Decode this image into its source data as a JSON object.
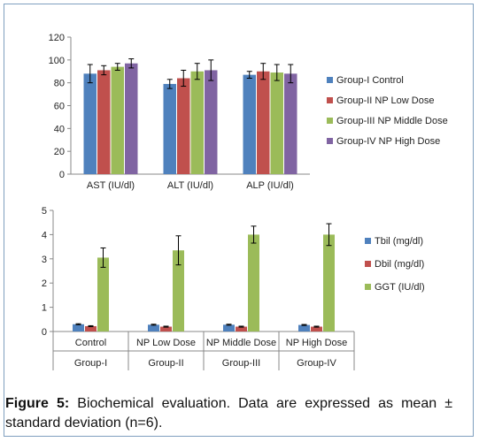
{
  "caption": {
    "label": "Figure 5:",
    "text": "Biochemical evaluation. Data are expressed as mean ± standard deviation (n=6)."
  },
  "chart_data": [
    {
      "type": "bar",
      "title": "",
      "xlabel": "",
      "ylabel": "",
      "ylim": [
        0,
        120
      ],
      "yticks": [
        "0",
        "20",
        "40",
        "60",
        "80",
        "100",
        "120"
      ],
      "grid": false,
      "legend": "right",
      "categories": [
        "AST (IU/dl)",
        "ALT (IU/dl)",
        "ALP (IU/dl)"
      ],
      "series": [
        {
          "name": "Group-I Control",
          "color": "#4f81bd",
          "values": [
            88,
            79,
            87
          ],
          "errors": [
            8,
            4,
            3
          ]
        },
        {
          "name": "Group-II NP Low Dose",
          "color": "#c0504d",
          "values": [
            91,
            84,
            90
          ],
          "errors": [
            4,
            7,
            7
          ]
        },
        {
          "name": "Group-III NP Middle Dose",
          "color": "#9bbb59",
          "values": [
            94,
            90,
            89
          ],
          "errors": [
            3,
            7,
            7
          ]
        },
        {
          "name": "Group-IV NP High Dose",
          "color": "#8064a2",
          "values": [
            97,
            91,
            88
          ],
          "errors": [
            4,
            9,
            8
          ]
        }
      ]
    },
    {
      "type": "bar",
      "title": "",
      "xlabel": "",
      "ylabel": "",
      "ylim": [
        0,
        5
      ],
      "yticks": [
        "0",
        "1",
        "2",
        "3",
        "4",
        "5"
      ],
      "grid": false,
      "legend": "right",
      "categories": [
        "Control",
        "NP Low Dose",
        "NP Middle Dose",
        "NP High Dose"
      ],
      "groups": [
        "Group-I",
        "Group-II",
        "Group-III",
        "Group-IV"
      ],
      "series": [
        {
          "name": "Tbil (mg/dl)",
          "color": "#4f81bd",
          "values": [
            0.3,
            0.28,
            0.28,
            0.27
          ],
          "errors": [
            0.02,
            0.02,
            0.02,
            0.02
          ]
        },
        {
          "name": "Dbil (mg/dl)",
          "color": "#c0504d",
          "values": [
            0.22,
            0.2,
            0.2,
            0.2
          ],
          "errors": [
            0.02,
            0.02,
            0.02,
            0.02
          ]
        },
        {
          "name": "GGT (IU/dl)",
          "color": "#9bbb59",
          "values": [
            3.05,
            3.35,
            4.0,
            4.0
          ],
          "errors": [
            0.4,
            0.6,
            0.35,
            0.45
          ]
        }
      ]
    }
  ]
}
